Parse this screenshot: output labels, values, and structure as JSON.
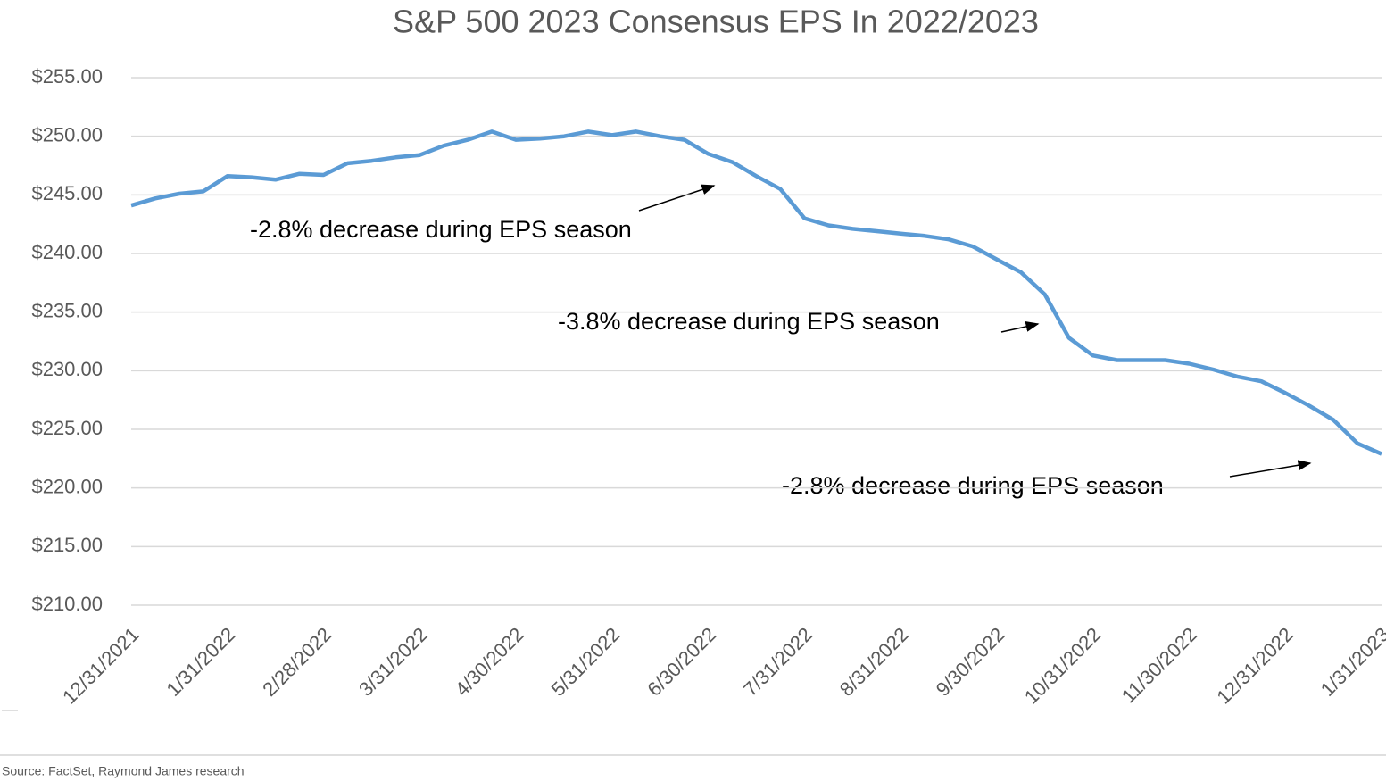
{
  "chart_data": {
    "type": "line",
    "title": "S&P 500 2023 Consensus EPS In 2022/2023",
    "categories": [
      "12/31/2021",
      null,
      null,
      null,
      "1/31/2022",
      null,
      null,
      null,
      "2/28/2022",
      null,
      null,
      null,
      "3/31/2022",
      null,
      null,
      null,
      "4/30/2022",
      null,
      null,
      null,
      "5/31/2022",
      null,
      null,
      null,
      "6/30/2022",
      null,
      null,
      null,
      "7/31/2022",
      null,
      null,
      null,
      "8/31/2022",
      null,
      null,
      null,
      "9/30/2022",
      null,
      null,
      null,
      "10/31/2022",
      null,
      null,
      null,
      "11/30/2022",
      null,
      null,
      null,
      "12/31/2022",
      null,
      null,
      null,
      "1/31/2023"
    ],
    "series": [
      {
        "name": "S&P 500 2023 Consensus EPS",
        "color": "#5b9bd5",
        "values": [
          244.1,
          244.7,
          245.1,
          245.3,
          246.6,
          246.5,
          246.3,
          246.8,
          246.7,
          247.7,
          247.9,
          248.2,
          248.4,
          249.2,
          249.7,
          250.4,
          249.7,
          249.8,
          250.0,
          250.4,
          250.1,
          250.4,
          250.0,
          249.7,
          248.5,
          247.8,
          246.6,
          245.5,
          243.0,
          242.4,
          242.1,
          241.9,
          241.7,
          241.5,
          241.2,
          240.6,
          239.5,
          238.4,
          236.5,
          232.8,
          231.3,
          230.9,
          230.9,
          230.9,
          230.6,
          230.1,
          229.5,
          229.1,
          228.1,
          227.0,
          225.8,
          223.8,
          222.9
        ]
      }
    ],
    "ylim": [
      210,
      255
    ],
    "yticks": [
      {
        "value": 210,
        "label": "$210.00"
      },
      {
        "value": 215,
        "label": "$215.00"
      },
      {
        "value": 220,
        "label": "$220.00"
      },
      {
        "value": 225,
        "label": "$225.00"
      },
      {
        "value": 230,
        "label": "$230.00"
      },
      {
        "value": 235,
        "label": "$235.00"
      },
      {
        "value": 240,
        "label": "$240.00"
      },
      {
        "value": 245,
        "label": "$245.00"
      },
      {
        "value": 250,
        "label": "$250.00"
      },
      {
        "value": 255,
        "label": "$255.00"
      }
    ],
    "grid": true,
    "annotations": [
      "-2.8% decrease during EPS season",
      "-3.8% decrease during EPS season",
      "-2.8% decrease during EPS season"
    ],
    "source": "Source: FactSet, Raymond James research"
  }
}
